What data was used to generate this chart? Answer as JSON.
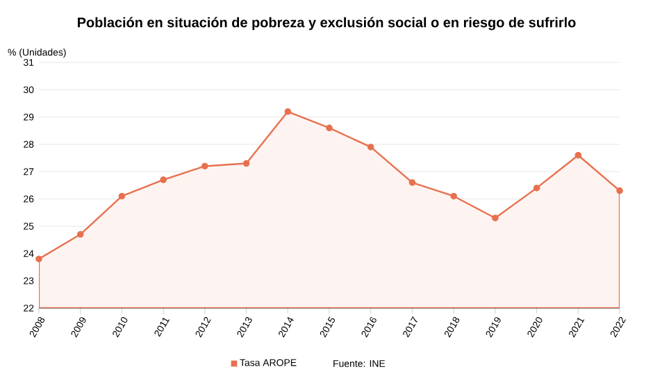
{
  "chart_data": {
    "type": "area",
    "title": "Población en situación de pobreza y exclusión social o en riesgo de sufrirlo",
    "ylabel": "% (Unidades)",
    "x": [
      2008,
      2009,
      2010,
      2011,
      2012,
      2013,
      2014,
      2015,
      2016,
      2017,
      2018,
      2019,
      2020,
      2021,
      2022
    ],
    "series": [
      {
        "name": "Tasa AROPE",
        "color": "#e8704f",
        "values": [
          23.8,
          24.7,
          26.1,
          26.7,
          27.2,
          27.3,
          29.2,
          28.6,
          27.9,
          26.6,
          26.1,
          25.3,
          26.4,
          27.6,
          26.3
        ]
      }
    ],
    "xlim": [
      2008,
      2022
    ],
    "xticks": [
      2008,
      2009,
      2010,
      2011,
      2012,
      2013,
      2014,
      2015,
      2016,
      2017,
      2018,
      2019,
      2020,
      2021,
      2022
    ],
    "ylim": [
      22,
      31
    ],
    "yticks": [
      22,
      23,
      24,
      25,
      26,
      27,
      28,
      29,
      30,
      31
    ],
    "grid": "y",
    "legend": "bottom",
    "marker": "circle",
    "line_style": "solid",
    "annotations": [
      "Fuente: INE"
    ]
  }
}
